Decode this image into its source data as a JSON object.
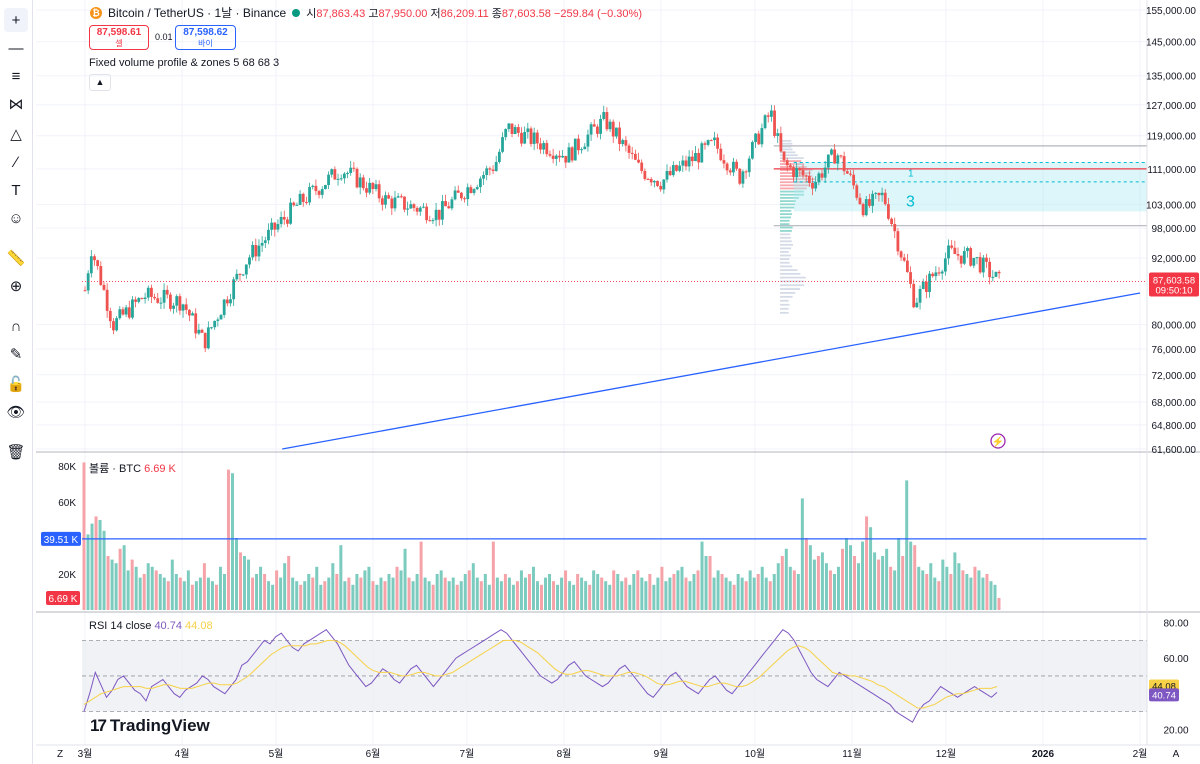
{
  "header": {
    "symbol": "Bitcoin / TetherUS · 1날 · Binance",
    "open_label": "시",
    "open": "87,863.43",
    "high_label": "고",
    "high": "87,950.00",
    "low_label": "저",
    "low": "86,209.11",
    "close_label": "종",
    "close": "87,603.58",
    "change": "−259.84 (−0.30%)"
  },
  "trade": {
    "sell_price": "87,598.61",
    "sell_label": "셀",
    "spread": "0.01",
    "buy_price": "87,598.62",
    "buy_label": "바이"
  },
  "indicator_label": "Fixed volume profile & zones 5 68 68 3",
  "collapse_icon": "▲",
  "volume_title": "볼륨 · BTC",
  "volume_value": "6.69 K",
  "rsi_title": "RSI 14 close",
  "rsi_value1": "40.74",
  "rsi_value2": "44.08",
  "logo_text": "TradingView",
  "logo_mark": "17",
  "zone_labels": [
    "1",
    "3"
  ],
  "bottom_left": "Z",
  "bottom_right": "A",
  "colors": {
    "up": "#26a69a",
    "down": "#ef5350",
    "trend": "#2962ff",
    "rsi": "#7e57c2",
    "rsi_ma": "#f7d147"
  },
  "toolbar": [
    "crosshair-icon",
    "horizontal-line-icon",
    "fib-icon",
    "pattern-icon",
    "triangle-icon",
    "brush-icon",
    "text-icon",
    "emoji-icon",
    "ruler-icon",
    "zoom-icon",
    "magnet-icon",
    "lock-pencil-icon",
    "lock-icon",
    "eye-icon",
    "trash-icon"
  ],
  "chart_data": [
    {
      "type": "candlestick",
      "title": "Bitcoin / TetherUS · 1날 · Binance",
      "x_ticks": [
        "3월",
        "4월",
        "5월",
        "6월",
        "7월",
        "8월",
        "9월",
        "10월",
        "11월",
        "12월",
        "2026",
        "2월"
      ],
      "y_ticks": [
        "155,000.00",
        "145,000.00",
        "135,000.00",
        "127,000.00",
        "119,000.00",
        "111,000.00",
        "103,000.00",
        "98,000.00",
        "92,000.00",
        "80,000.00",
        "76,000.00",
        "72,000.00",
        "68,000.00",
        "64,800.00",
        "61,600.00"
      ],
      "ylim": [
        61600,
        155000
      ],
      "y_scale": "log",
      "last_price": "87,603.58",
      "countdown": "09:50:10",
      "close_path": [
        {
          "date": "2025-03-01",
          "price": 86000
        },
        {
          "date": "2025-03-03",
          "price": 94000
        },
        {
          "date": "2025-03-10",
          "price": 80000
        },
        {
          "date": "2025-03-20",
          "price": 85000
        },
        {
          "date": "2025-04-01",
          "price": 84000
        },
        {
          "date": "2025-04-08",
          "price": 77000
        },
        {
          "date": "2025-04-22",
          "price": 92000
        },
        {
          "date": "2025-05-08",
          "price": 103000
        },
        {
          "date": "2025-05-22",
          "price": 111000
        },
        {
          "date": "2025-06-05",
          "price": 104000
        },
        {
          "date": "2025-06-22",
          "price": 101000
        },
        {
          "date": "2025-07-10",
          "price": 112000
        },
        {
          "date": "2025-07-14",
          "price": 121000
        },
        {
          "date": "2025-08-02",
          "price": 114000
        },
        {
          "date": "2025-08-14",
          "price": 123000
        },
        {
          "date": "2025-08-25",
          "price": 111000
        },
        {
          "date": "2025-09-01",
          "price": 108000
        },
        {
          "date": "2025-09-18",
          "price": 117000
        },
        {
          "date": "2025-09-26",
          "price": 109000
        },
        {
          "date": "2025-10-06",
          "price": 125000
        },
        {
          "date": "2025-10-10",
          "price": 112000
        },
        {
          "date": "2025-10-20",
          "price": 108000
        },
        {
          "date": "2025-10-27",
          "price": 115000
        },
        {
          "date": "2025-11-05",
          "price": 102000
        },
        {
          "date": "2025-11-11",
          "price": 105000
        },
        {
          "date": "2025-11-21",
          "price": 84000
        },
        {
          "date": "2025-12-02",
          "price": 93000
        },
        {
          "date": "2025-12-10",
          "price": 92000
        },
        {
          "date": "2025-12-18",
          "price": 87600
        }
      ],
      "horizontal_levels": [
        116500,
        111000,
        98500
      ],
      "zones": [
        {
          "label": "1",
          "low": 108000,
          "high": 112500
        },
        {
          "label": "3",
          "low": 101500,
          "high": 108000
        }
      ],
      "trendline": [
        {
          "date": "2025-05-03",
          "price": 61600
        },
        {
          "date": "2026-02-01",
          "price": 85500
        }
      ]
    },
    {
      "type": "bar",
      "title": "볼륨 · BTC",
      "y_ticks": [
        "80K",
        "60K",
        "20K"
      ],
      "ylim": [
        0,
        85000
      ],
      "markers": {
        "ma_value": "39.51 K",
        "last_value": "6.69 K"
      },
      "avg_level": 39510,
      "values": [
        82000,
        42000,
        48000,
        52000,
        50000,
        44000,
        30000,
        28000,
        26000,
        34000,
        36000,
        22000,
        28000,
        24000,
        18000,
        20000,
        26000,
        24000,
        22000,
        20000,
        18000,
        16000,
        28000,
        20000,
        18000,
        16000,
        22000,
        14000,
        16000,
        18000,
        26000,
        18000,
        16000,
        14000,
        24000,
        20000,
        78000,
        76000,
        40000,
        32000,
        30000,
        28000,
        18000,
        20000,
        24000,
        20000,
        16000,
        14000,
        22000,
        18000,
        26000,
        30000,
        18000,
        16000,
        14000,
        16000,
        20000,
        18000,
        24000,
        14000,
        16000,
        18000,
        26000,
        20000,
        36000,
        16000,
        18000,
        14000,
        20000,
        18000,
        22000,
        24000,
        16000,
        14000,
        18000,
        16000,
        20000,
        18000,
        24000,
        22000,
        34000,
        18000,
        16000,
        20000,
        38000,
        18000,
        16000,
        14000,
        20000,
        22000,
        18000,
        16000,
        18000,
        14000,
        16000,
        20000,
        22000,
        26000,
        18000,
        16000,
        20000,
        14000,
        38000,
        18000,
        16000,
        20000,
        18000,
        14000,
        16000,
        22000,
        18000,
        20000,
        24000,
        16000,
        14000,
        18000,
        20000,
        16000,
        14000,
        18000,
        22000,
        16000,
        14000,
        20000,
        18000,
        16000,
        14000,
        22000,
        20000,
        18000,
        16000,
        14000,
        22000,
        20000,
        16000,
        18000,
        14000,
        20000,
        22000,
        18000,
        16000,
        20000,
        14000,
        18000,
        24000,
        16000,
        18000,
        20000,
        22000,
        24000,
        18000,
        16000,
        20000,
        22000,
        38000,
        30000,
        30000,
        18000,
        22000,
        20000,
        18000,
        16000,
        14000,
        20000,
        18000,
        16000,
        22000,
        18000,
        20000,
        24000,
        18000,
        16000,
        20000,
        26000,
        30000,
        34000,
        24000,
        22000,
        20000,
        62000,
        40000,
        36000,
        28000,
        30000,
        32000,
        26000,
        22000,
        20000,
        24000,
        34000,
        40000,
        36000,
        30000,
        26000,
        38000,
        52000,
        46000,
        32000,
        28000,
        30000,
        34000,
        24000,
        22000,
        40000,
        30000,
        72000,
        38000,
        36000,
        24000,
        22000,
        20000,
        26000,
        18000,
        16000,
        28000,
        24000,
        20000,
        32000,
        26000,
        22000,
        20000,
        18000,
        24000,
        22000,
        18000,
        20000,
        16000,
        14000,
        6690
      ]
    },
    {
      "type": "line",
      "title": "RSI 14 close",
      "y_ticks": [
        "80.00",
        "60.00",
        "20.00"
      ],
      "ylim": [
        14,
        82
      ],
      "bands": [
        30,
        50,
        70
      ],
      "series": [
        {
          "name": "RSI 14 close",
          "values": [
            30,
            40,
            52,
            45,
            38,
            42,
            48,
            50,
            46,
            42,
            40,
            36,
            44,
            46,
            48,
            44,
            40,
            38,
            42,
            44,
            46,
            50,
            48,
            44,
            42,
            40,
            44,
            48,
            56,
            58,
            62,
            66,
            70,
            68,
            72,
            74,
            70,
            66,
            64,
            68,
            70,
            72,
            74,
            76,
            72,
            68,
            62,
            56,
            52,
            48,
            44,
            46,
            50,
            54,
            52,
            48,
            46,
            50,
            54,
            56,
            52,
            48,
            44,
            48,
            52,
            56,
            60,
            62,
            64,
            66,
            68,
            70,
            72,
            74,
            76,
            74,
            70,
            66,
            62,
            58,
            54,
            50,
            48,
            46,
            48,
            52,
            56,
            58,
            54,
            50,
            48,
            46,
            44,
            46,
            50,
            54,
            56,
            52,
            48,
            44,
            40,
            38,
            42,
            46,
            50,
            52,
            48,
            44,
            42,
            40,
            44,
            48,
            50,
            46,
            42,
            40,
            44,
            48,
            52,
            56,
            60,
            64,
            68,
            72,
            76,
            74,
            70,
            64,
            58,
            52,
            48,
            46,
            44,
            48,
            52,
            50,
            48,
            46,
            44,
            42,
            40,
            38,
            36,
            34,
            30,
            28,
            26,
            24,
            30,
            34,
            36,
            40,
            44,
            42,
            40,
            38,
            40,
            42,
            44,
            42,
            40,
            38,
            40.74
          ]
        },
        {
          "name": "",
          "values": [
            34,
            36,
            38,
            40,
            41,
            42,
            43,
            44,
            44,
            44,
            44,
            43,
            43,
            44,
            45,
            45,
            44,
            43,
            43,
            43,
            44,
            45,
            46,
            46,
            45,
            45,
            45,
            46,
            48,
            50,
            53,
            56,
            59,
            62,
            64,
            66,
            67,
            67,
            67,
            67,
            68,
            68,
            69,
            70,
            70,
            69,
            67,
            64,
            61,
            58,
            55,
            53,
            52,
            52,
            52,
            51,
            50,
            50,
            51,
            52,
            52,
            51,
            50,
            50,
            51,
            52,
            54,
            56,
            58,
            60,
            62,
            64,
            66,
            68,
            70,
            70,
            70,
            69,
            67,
            65,
            63,
            60,
            57,
            54,
            52,
            51,
            51,
            52,
            53,
            53,
            52,
            51,
            50,
            50,
            50,
            51,
            52,
            52,
            51,
            50,
            48,
            46,
            45,
            45,
            46,
            47,
            47,
            46,
            45,
            44,
            44,
            45,
            46,
            46,
            45,
            44,
            44,
            45,
            47,
            49,
            52,
            55,
            58,
            61,
            64,
            66,
            67,
            66,
            64,
            61,
            58,
            55,
            52,
            51,
            51,
            50,
            50,
            49,
            48,
            47,
            45,
            44,
            42,
            40,
            38,
            36,
            34,
            32,
            32,
            33,
            34,
            36,
            38,
            39,
            40,
            40,
            41,
            42,
            43,
            43,
            43,
            44.08
          ]
        }
      ]
    }
  ]
}
